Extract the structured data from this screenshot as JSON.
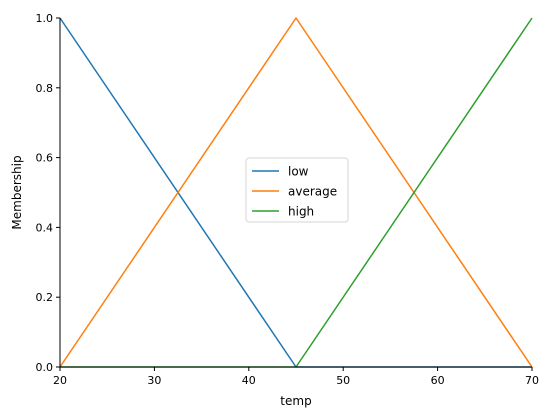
{
  "chart_data": {
    "type": "line",
    "title": "",
    "xlabel": "temp",
    "ylabel": "Membership",
    "xlim": [
      20,
      70
    ],
    "ylim": [
      0,
      1.0
    ],
    "x_ticks": [
      20,
      30,
      40,
      50,
      60,
      70
    ],
    "y_ticks": [
      0.0,
      0.2,
      0.4,
      0.6,
      0.8,
      1.0
    ],
    "x_tick_labels": [
      "20",
      "30",
      "40",
      "50",
      "60",
      "70"
    ],
    "y_tick_labels": [
      "0.0",
      "0.2",
      "0.4",
      "0.6",
      "0.8",
      "1.0"
    ],
    "grid": false,
    "legend_position": "center",
    "series": [
      {
        "name": "low",
        "color": "#1f77b4",
        "x": [
          20,
          45,
          70
        ],
        "y": [
          1.0,
          0.0,
          0.0
        ]
      },
      {
        "name": "average",
        "color": "#ff7f0e",
        "x": [
          20,
          45,
          70
        ],
        "y": [
          0.0,
          1.0,
          0.0
        ]
      },
      {
        "name": "high",
        "color": "#2ca02c",
        "x": [
          20,
          45,
          70
        ],
        "y": [
          0.0,
          0.0,
          1.0
        ]
      }
    ]
  }
}
